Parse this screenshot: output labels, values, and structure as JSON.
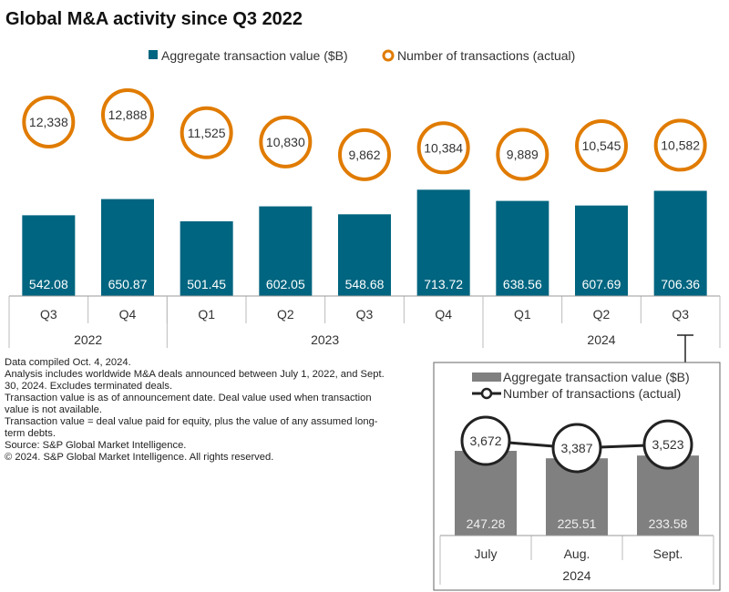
{
  "chart_data": [
    {
      "type": "bar",
      "title": "Global M&A activity since Q3 2022",
      "categories": [
        "Q3",
        "Q4",
        "Q1",
        "Q2",
        "Q3",
        "Q4",
        "Q1",
        "Q2",
        "Q3"
      ],
      "year_groups": [
        {
          "label": "2022",
          "count": 2
        },
        {
          "label": "2023",
          "count": 4
        },
        {
          "label": "2024",
          "count": 3
        }
      ],
      "series": [
        {
          "name": "Aggregate transaction value ($B)",
          "kind": "bar",
          "color": "#006580",
          "values": [
            542.08,
            650.87,
            501.45,
            602.05,
            548.68,
            713.72,
            638.56,
            607.69,
            706.36
          ]
        },
        {
          "name": "Number of transactions (actual)",
          "kind": "circle",
          "color": "#E07B00",
          "values": [
            12338,
            12888,
            11525,
            10830,
            9862,
            10384,
            9889,
            10545,
            10582
          ]
        }
      ],
      "value_labels": [
        "542.08",
        "650.87",
        "501.45",
        "602.05",
        "548.68",
        "713.72",
        "638.56",
        "607.69",
        "706.36"
      ],
      "count_labels": [
        "12,338",
        "12,888",
        "11,525",
        "10,830",
        "9,862",
        "10,384",
        "9,889",
        "10,545",
        "10,582"
      ],
      "legend_placement": "top",
      "grid": false
    },
    {
      "type": "bar",
      "categories": [
        "July",
        "Aug.",
        "Sept."
      ],
      "year_groups": [
        {
          "label": "2024",
          "count": 3
        }
      ],
      "series": [
        {
          "name": "Aggregate transaction value ($B)",
          "kind": "bar",
          "color": "#808080",
          "values": [
            247.28,
            225.51,
            233.58
          ]
        },
        {
          "name": "Number of transactions (actual)",
          "kind": "line",
          "color": "#222222",
          "values": [
            3672,
            3387,
            3523
          ]
        }
      ],
      "value_labels": [
        "247.28",
        "225.51",
        "233.58"
      ],
      "count_labels": [
        "3,672",
        "3,387",
        "3,523"
      ],
      "legend_placement": "top",
      "grid": false
    }
  ],
  "notes": [
    "Data compiled Oct. 4, 2024.",
    "Analysis includes worldwide M&A deals announced between July 1, 2022, and Sept. 30, 2024. Excludes terminated deals.",
    "Transaction value is as of announcement date. Deal value used when transaction value is not available.",
    "Transaction value = deal value paid for equity, plus the value of any assumed long-term debts.",
    "Source: S&P Global Market Intelligence.",
    "© 2024. S&P Global Market Intelligence. All rights reserved."
  ]
}
